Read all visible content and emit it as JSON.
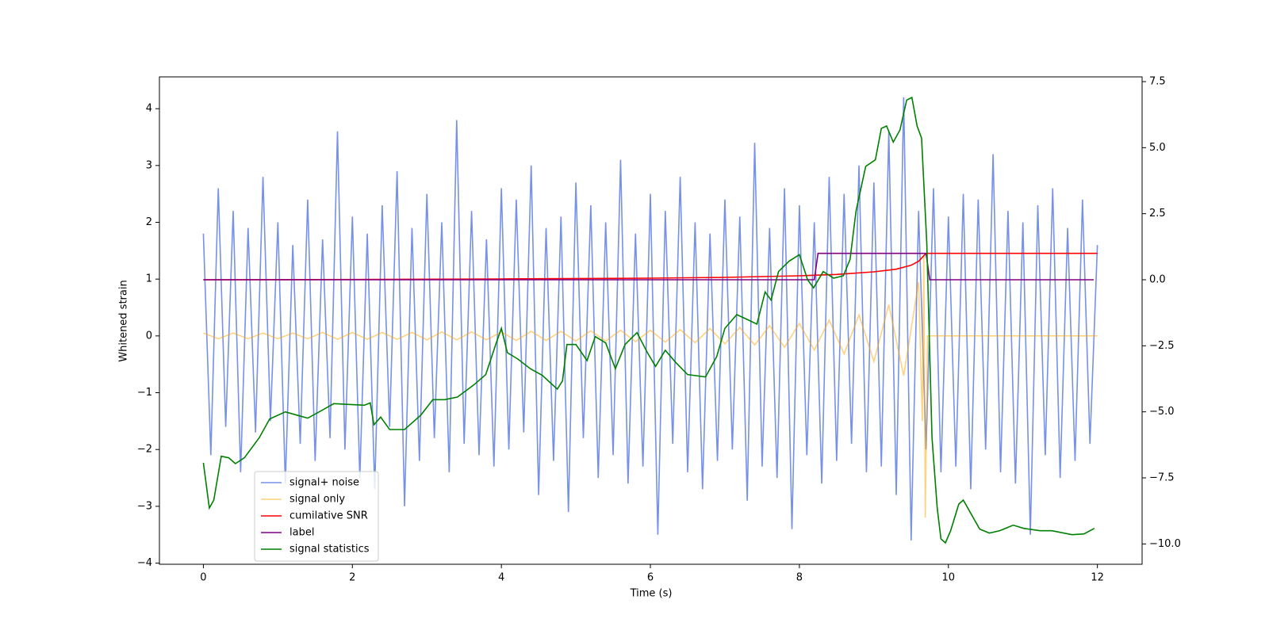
{
  "chart_data": {
    "type": "line",
    "xlabel": "Time (s)",
    "ylabel": "Whitened strain",
    "xlim": [
      -0.59,
      12.6
    ],
    "ylim": [
      -4.02,
      4.56
    ],
    "y2lim": [
      -10.77,
      7.68
    ],
    "xticks": [
      0,
      2,
      4,
      6,
      8,
      10,
      12
    ],
    "yticks": [
      {
        "value": -4,
        "label": "−4"
      },
      {
        "value": -3,
        "label": "−3"
      },
      {
        "value": -2,
        "label": "−2"
      },
      {
        "value": -1,
        "label": "−1"
      },
      0,
      1,
      2,
      3,
      4
    ],
    "y2ticks": [
      {
        "value": -10,
        "label": "−10.0"
      },
      {
        "value": -7.5,
        "label": "−7.5"
      },
      {
        "value": -5,
        "label": "−5.0"
      },
      {
        "value": -2.5,
        "label": "−2.5"
      },
      {
        "value": 0,
        "label": "0.0"
      },
      {
        "value": 2.5,
        "label": "2.5"
      },
      {
        "value": 5,
        "label": "5.0"
      },
      {
        "value": 7.5,
        "label": "7.5"
      }
    ],
    "legend": "lower left",
    "series": [
      {
        "name": "signal+ noise",
        "color": "#6f8be6",
        "alpha": 0.95,
        "axis": "y",
        "x": [
          0,
          0.1,
          0.2,
          0.3,
          0.4,
          0.5,
          0.6,
          0.7,
          0.8,
          0.9,
          1,
          1.1,
          1.2,
          1.3,
          1.4,
          1.5,
          1.6,
          1.7,
          1.8,
          1.9,
          2,
          2.1,
          2.2,
          2.3,
          2.4,
          2.5,
          2.6,
          2.7,
          2.8,
          2.9,
          3,
          3.1,
          3.2,
          3.3,
          3.4,
          3.5,
          3.6,
          3.7,
          3.8,
          3.9,
          4,
          4.1,
          4.2,
          4.3,
          4.4,
          4.5,
          4.6,
          4.7,
          4.8,
          4.9,
          5,
          5.1,
          5.2,
          5.3,
          5.4,
          5.5,
          5.6,
          5.7,
          5.8,
          5.9,
          6,
          6.1,
          6.2,
          6.3,
          6.4,
          6.5,
          6.6,
          6.7,
          6.8,
          6.9,
          7,
          7.1,
          7.2,
          7.3,
          7.4,
          7.5,
          7.6,
          7.7,
          7.8,
          7.9,
          8,
          8.1,
          8.2,
          8.3,
          8.4,
          8.5,
          8.6,
          8.7,
          8.8,
          8.9,
          9,
          9.1,
          9.2,
          9.3,
          9.4,
          9.5,
          9.6,
          9.7,
          9.8,
          9.9,
          10,
          10.1,
          10.2,
          10.3,
          10.4,
          10.5,
          10.6,
          10.7,
          10.8,
          10.9,
          11,
          11.1,
          11.2,
          11.3,
          11.4,
          11.5,
          11.6,
          11.7,
          11.8,
          11.9,
          12
        ],
        "values": [
          1.8,
          -2.1,
          2.6,
          -1.6,
          2.2,
          -2.4,
          1.9,
          -1.7,
          2.8,
          -1.5,
          2.0,
          -2.6,
          1.6,
          -1.9,
          2.4,
          -2.2,
          1.7,
          -1.8,
          3.6,
          -2.0,
          2.1,
          -2.5,
          1.8,
          -2.7,
          2.3,
          -1.6,
          2.9,
          -3.0,
          1.9,
          -2.2,
          2.5,
          -1.8,
          2.0,
          -2.4,
          3.8,
          -1.9,
          2.2,
          -2.1,
          1.7,
          -2.3,
          2.6,
          -2.0,
          2.4,
          -1.7,
          3.0,
          -2.8,
          1.9,
          -2.2,
          2.1,
          -3.1,
          2.7,
          -1.8,
          2.3,
          -2.5,
          2.0,
          -2.1,
          3.1,
          -2.6,
          1.8,
          -2.3,
          2.5,
          -3.5,
          2.2,
          -1.9,
          2.8,
          -2.4,
          2.0,
          -2.7,
          1.8,
          -2.2,
          2.4,
          -2.0,
          2.1,
          -2.9,
          3.4,
          -2.3,
          1.9,
          -2.5,
          2.6,
          -3.4,
          2.3,
          -2.1,
          2.0,
          -2.6,
          2.8,
          -2.2,
          2.5,
          -1.9,
          3.0,
          -2.4,
          2.7,
          -2.3,
          3.6,
          -2.8,
          4.2,
          -3.6,
          2.2,
          -2.0,
          2.6,
          -2.4,
          2.1,
          -2.3,
          2.5,
          -2.7,
          2.4,
          -2.0,
          3.2,
          -2.4,
          2.2,
          -2.6,
          2.0,
          -3.5,
          2.3,
          -2.1,
          2.6,
          -2.5,
          1.9,
          -2.2,
          2.4,
          -1.9,
          1.6
        ]
      },
      {
        "name": "signal only",
        "color": "#ffa500",
        "alpha": 0.5,
        "axis": "y",
        "x": [
          0,
          0.2,
          0.4,
          0.6,
          0.8,
          1,
          1.2,
          1.4,
          1.6,
          1.8,
          2,
          2.2,
          2.4,
          2.6,
          2.8,
          3,
          3.2,
          3.4,
          3.6,
          3.8,
          4,
          4.2,
          4.4,
          4.6,
          4.8,
          5,
          5.2,
          5.4,
          5.6,
          5.8,
          6,
          6.2,
          6.4,
          6.6,
          6.8,
          7,
          7.2,
          7.4,
          7.6,
          7.8,
          8,
          8.2,
          8.4,
          8.6,
          8.8,
          9,
          9.2,
          9.4,
          9.6,
          9.65,
          9.67,
          9.69,
          9.72,
          12
        ],
        "values": [
          0.05,
          -0.05,
          0.05,
          -0.05,
          0.05,
          -0.05,
          0.05,
          -0.05,
          0.06,
          -0.06,
          0.06,
          -0.06,
          0.06,
          -0.06,
          0.06,
          -0.07,
          0.07,
          -0.07,
          0.07,
          -0.07,
          0.07,
          -0.08,
          0.08,
          -0.08,
          0.08,
          -0.09,
          0.09,
          -0.09,
          0.1,
          -0.1,
          0.1,
          -0.11,
          0.11,
          -0.12,
          0.13,
          -0.14,
          0.15,
          -0.16,
          0.18,
          -0.2,
          0.22,
          -0.25,
          0.28,
          -0.32,
          0.37,
          -0.45,
          0.55,
          -0.7,
          0.95,
          -1.5,
          1.4,
          -3.2,
          0,
          0
        ]
      },
      {
        "name": "cumilative SNR",
        "color": "#ff0000",
        "alpha": 1,
        "axis": "y2",
        "x": [
          0,
          2,
          4,
          6,
          7,
          8,
          8.5,
          9,
          9.3,
          9.5,
          9.6,
          9.7,
          12
        ],
        "values": [
          0,
          0.01,
          0.03,
          0.06,
          0.09,
          0.15,
          0.2,
          0.3,
          0.4,
          0.55,
          0.7,
          1,
          1
        ]
      },
      {
        "name": "label",
        "color": "#800080",
        "alpha": 1,
        "axis": "y2",
        "x": [
          0,
          8.2,
          8.25,
          9.7,
          9.75,
          11.95
        ],
        "values": [
          0,
          0,
          1,
          1,
          0,
          0
        ]
      },
      {
        "name": "signal statistics",
        "color": "#008000",
        "alpha": 1,
        "axis": "y2",
        "x": [
          0,
          0.08,
          0.14,
          0.24,
          0.34,
          0.43,
          0.55,
          0.75,
          0.89,
          1.1,
          1.4,
          1.6,
          1.75,
          1.95,
          2.16,
          2.24,
          2.29,
          2.38,
          2.5,
          2.7,
          2.92,
          3.08,
          3.24,
          3.41,
          3.63,
          3.79,
          3.93,
          4.0,
          4.08,
          4.22,
          4.39,
          4.55,
          4.75,
          4.82,
          4.88,
          5.0,
          5.15,
          5.26,
          5.4,
          5.53,
          5.66,
          5.82,
          5.96,
          6.07,
          6.2,
          6.34,
          6.5,
          6.74,
          6.89,
          7.0,
          7.16,
          7.32,
          7.43,
          7.54,
          7.62,
          7.72,
          7.86,
          8.0,
          8.11,
          8.19,
          8.32,
          8.46,
          8.59,
          8.68,
          8.76,
          8.89,
          9.02,
          9.1,
          9.17,
          9.26,
          9.35,
          9.44,
          9.51,
          9.58,
          9.64,
          9.71,
          9.78,
          9.85,
          9.9,
          9.96,
          10.03,
          10.14,
          10.2,
          10.31,
          10.42,
          10.55,
          10.69,
          10.87,
          11.01,
          11.23,
          11.39,
          11.66,
          11.82,
          11.96
        ],
        "values": [
          -6.93,
          -8.64,
          -8.34,
          -6.68,
          -6.74,
          -6.96,
          -6.74,
          -5.98,
          -5.27,
          -5.0,
          -5.24,
          -4.93,
          -4.69,
          -4.72,
          -4.75,
          -4.66,
          -5.49,
          -5.2,
          -5.67,
          -5.67,
          -5.12,
          -4.54,
          -4.54,
          -4.44,
          -3.98,
          -3.59,
          -2.4,
          -1.84,
          -2.76,
          -3.0,
          -3.37,
          -3.62,
          -4.14,
          -3.83,
          -2.45,
          -2.45,
          -3.06,
          -2.15,
          -2.39,
          -3.37,
          -2.45,
          -2.0,
          -2.76,
          -3.28,
          -2.67,
          -3.13,
          -3.59,
          -3.68,
          -2.91,
          -1.84,
          -1.32,
          -1.53,
          -1.68,
          -0.46,
          -0.77,
          0.31,
          0.7,
          0.95,
          0,
          -0.31,
          0.31,
          0.06,
          0.15,
          0.77,
          2.6,
          4.29,
          4.54,
          5.73,
          5.82,
          5.21,
          5.67,
          6.8,
          6.9,
          5.82,
          5.36,
          1.38,
          -5.98,
          -8.64,
          -9.81,
          -9.96,
          -9.5,
          -8.49,
          -8.34,
          -8.89,
          -9.44,
          -9.59,
          -9.5,
          -9.29,
          -9.41,
          -9.5,
          -9.5,
          -9.65,
          -9.62,
          -9.41
        ]
      }
    ]
  }
}
